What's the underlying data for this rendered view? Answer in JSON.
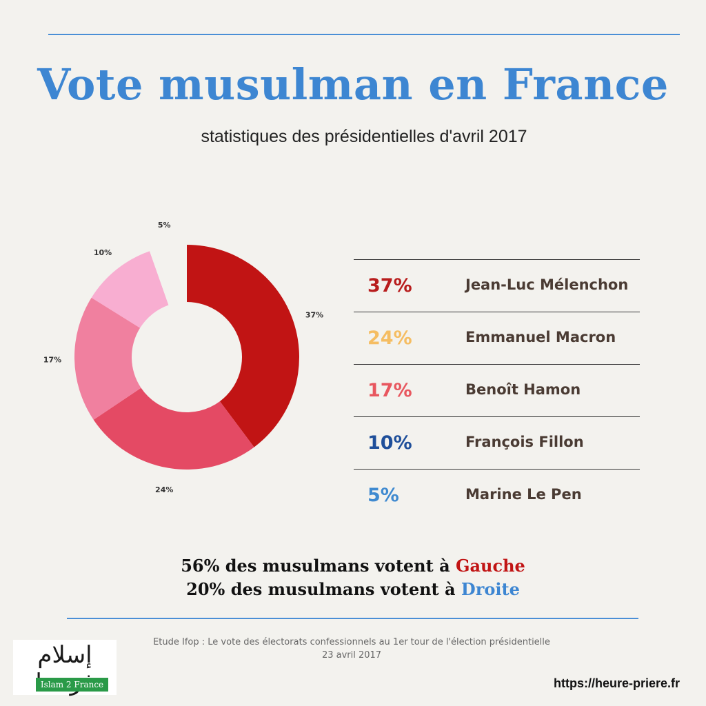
{
  "title": "Vote musulman en France",
  "subtitle": "statistiques des présidentielles d'avril 2017",
  "chart_data": {
    "type": "pie",
    "hole": true,
    "slices": [
      {
        "label": "Jean-Luc Mélenchon",
        "value": 37,
        "value_label": "37%",
        "color": "#c11414"
      },
      {
        "label": "Emmanuel Macron",
        "value": 24,
        "value_label": "24%",
        "color": "#e44a64"
      },
      {
        "label": "Benoît Hamon",
        "value": 17,
        "value_label": "17%",
        "color": "#f0809f"
      },
      {
        "label": "François Fillon",
        "value": 10,
        "value_label": "10%",
        "color": "#f8aed1"
      },
      {
        "label": "Marine Le Pen",
        "value": 5,
        "value_label": "5%",
        "color": "#f3f2ee"
      }
    ]
  },
  "legend": [
    {
      "pct": "37%",
      "name": "Jean-Luc Mélenchon",
      "color": "#b81d1d"
    },
    {
      "pct": "24%",
      "name": "Emmanuel Macron",
      "color": "#f5bd62"
    },
    {
      "pct": "17%",
      "name": "Benoît Hamon",
      "color": "#e8575f"
    },
    {
      "pct": "10%",
      "name": "François Fillon",
      "color": "#1f4f9a"
    },
    {
      "pct": "5%",
      "name": "Marine Le Pen",
      "color": "#3f8ad0"
    }
  ],
  "summary": {
    "line1_prefix": "56% des musulmans votent à ",
    "line1_word": "Gauche",
    "line1_color": "#c11414",
    "line2_prefix": "20% des musulmans votent à ",
    "line2_word": "Droite",
    "line2_color": "#3d86d2"
  },
  "source": {
    "line1": "Etude Ifop : Le vote des électorats confessionnels au 1er tour de l'élection présidentielle",
    "line2": "23 avril 2017"
  },
  "logo": {
    "arabic": "إسلام فرنسا",
    "band_text": "Islam 2 France"
  },
  "url": "https://heure-priere.fr"
}
